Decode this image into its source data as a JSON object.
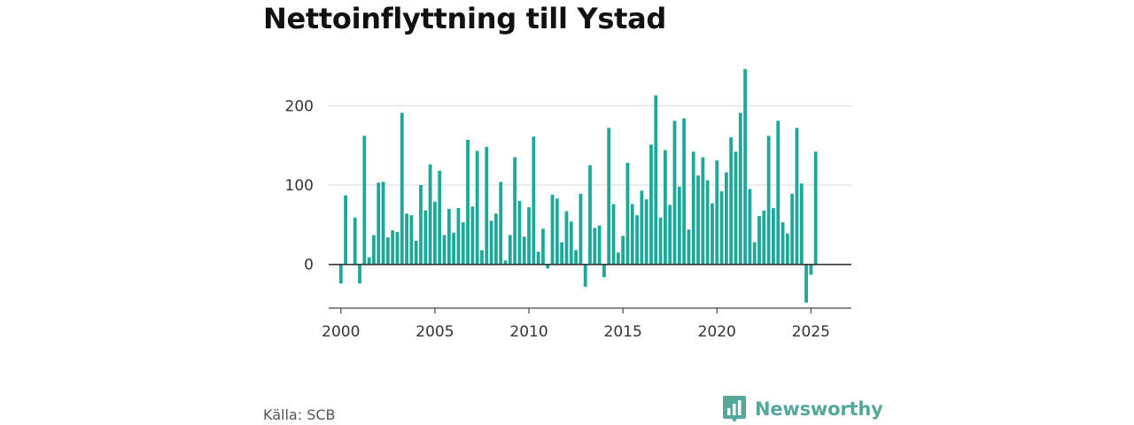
{
  "title": "Nettoinflyttning till Ystad",
  "source": "Källa: SCB",
  "brand": {
    "name": "Newsworthy",
    "icon": "newsworthy-logo-icon",
    "color": "#53a89a"
  },
  "chart_data": {
    "type": "bar",
    "title": "Nettoinflyttning till Ystad",
    "xlabel": "",
    "ylabel": "",
    "bar_color": "#1fa89a",
    "grid": "horizontal",
    "ylim": [
      -55,
      255
    ],
    "xlim": [
      1999.35,
      2027.15
    ],
    "y_ticks": [
      0,
      100,
      200
    ],
    "x_ticks": [
      2000,
      2005,
      2010,
      2015,
      2020,
      2025
    ],
    "x": [
      "2000-Q1",
      "2000-Q2",
      "2000-Q3",
      "2000-Q4",
      "2001-Q1",
      "2001-Q2",
      "2001-Q3",
      "2001-Q4",
      "2002-Q1",
      "2002-Q2",
      "2002-Q3",
      "2002-Q4",
      "2003-Q1",
      "2003-Q2",
      "2003-Q3",
      "2003-Q4",
      "2004-Q1",
      "2004-Q2",
      "2004-Q3",
      "2004-Q4",
      "2005-Q1",
      "2005-Q2",
      "2005-Q3",
      "2005-Q4",
      "2006-Q1",
      "2006-Q2",
      "2006-Q3",
      "2006-Q4",
      "2007-Q1",
      "2007-Q2",
      "2007-Q3",
      "2007-Q4",
      "2008-Q1",
      "2008-Q2",
      "2008-Q3",
      "2008-Q4",
      "2009-Q1",
      "2009-Q2",
      "2009-Q3",
      "2009-Q4",
      "2010-Q1",
      "2010-Q2",
      "2010-Q3",
      "2010-Q4",
      "2011-Q1",
      "2011-Q2",
      "2011-Q3",
      "2011-Q4",
      "2012-Q1",
      "2012-Q2",
      "2012-Q3",
      "2012-Q4",
      "2013-Q1",
      "2013-Q2",
      "2013-Q3",
      "2013-Q4",
      "2014-Q1",
      "2014-Q2",
      "2014-Q3",
      "2014-Q4",
      "2015-Q1",
      "2015-Q2",
      "2015-Q3",
      "2015-Q4",
      "2016-Q1",
      "2016-Q2",
      "2016-Q3",
      "2016-Q4",
      "2017-Q1",
      "2017-Q2",
      "2017-Q3",
      "2017-Q4",
      "2018-Q1",
      "2018-Q2",
      "2018-Q3",
      "2018-Q4",
      "2019-Q1",
      "2019-Q2",
      "2019-Q3",
      "2019-Q4",
      "2020-Q1",
      "2020-Q2",
      "2020-Q3",
      "2020-Q4",
      "2021-Q1",
      "2021-Q2",
      "2021-Q3",
      "2021-Q4",
      "2022-Q1",
      "2022-Q2",
      "2022-Q3",
      "2022-Q4",
      "2023-Q1",
      "2023-Q2",
      "2023-Q3",
      "2023-Q4",
      "2024-Q1",
      "2024-Q2",
      "2024-Q3",
      "2024-Q4",
      "2025-Q1",
      "2025-Q2"
    ],
    "values": [
      -24,
      87,
      0,
      59,
      -24,
      162,
      9,
      37,
      103,
      104,
      34,
      43,
      41,
      191,
      64,
      62,
      30,
      100,
      68,
      126,
      79,
      118,
      37,
      70,
      40,
      71,
      53,
      157,
      73,
      143,
      18,
      148,
      55,
      64,
      104,
      5,
      37,
      135,
      80,
      35,
      72,
      161,
      16,
      45,
      -5,
      88,
      83,
      28,
      67,
      54,
      18,
      89,
      -28,
      125,
      46,
      49,
      -16,
      172,
      76,
      15,
      36,
      128,
      76,
      62,
      93,
      82,
      151,
      213,
      59,
      144,
      75,
      181,
      98,
      184,
      44,
      142,
      112,
      135,
      106,
      77,
      131,
      92,
      116,
      160,
      142,
      191,
      246,
      95,
      28,
      61,
      68,
      162,
      71,
      181,
      53,
      39,
      89,
      172,
      102,
      -48,
      -13,
      142
    ]
  }
}
